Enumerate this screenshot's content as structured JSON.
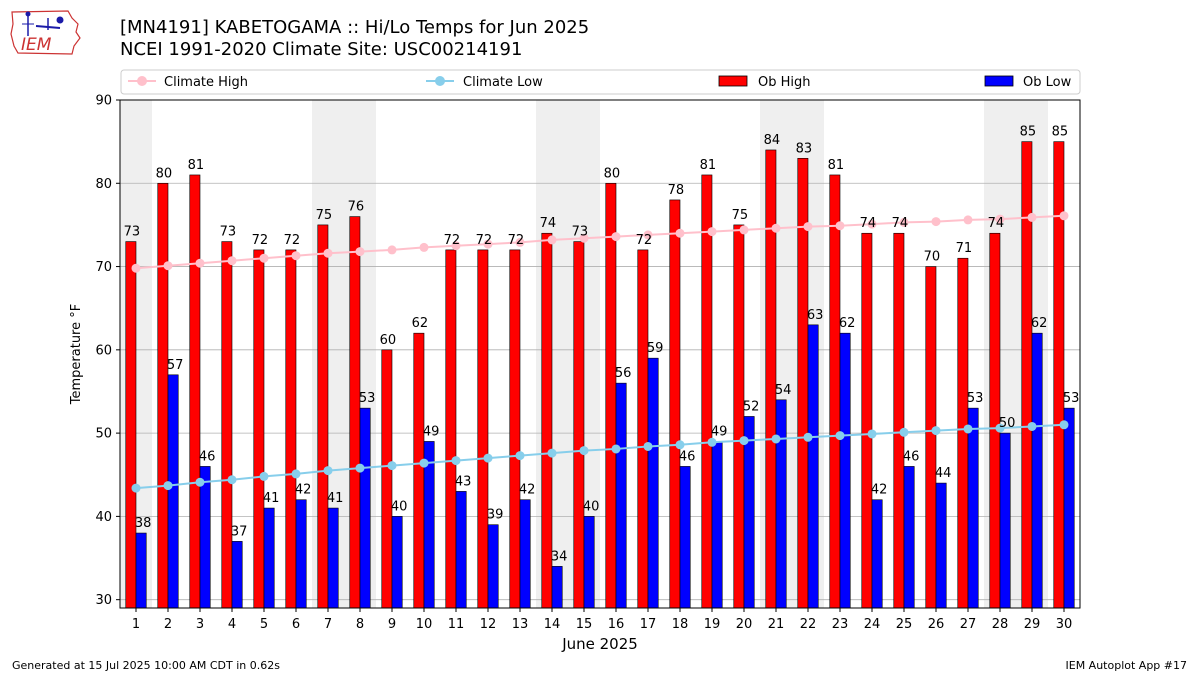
{
  "header": {
    "title_line1": "[MN4191] KABETOGAMA :: Hi/Lo Temps for Jun 2025",
    "title_line2": "NCEI 1991-2020 Climate Site: USC00214191"
  },
  "logo": {
    "text": "IEM"
  },
  "footer": {
    "generated": "Generated at 15 Jul 2025 10:00 AM CDT in 0.62s",
    "app": "IEM Autoplot App #17"
  },
  "chart_data": {
    "type": "bar",
    "xlabel": "June 2025",
    "ylabel": "Temperature °F",
    "ylim": [
      29,
      90
    ],
    "yticks": [
      30,
      40,
      50,
      60,
      70,
      80,
      90
    ],
    "grid": "horizontal",
    "legend_position": "top",
    "weekend_shading": true,
    "weekend_days": [
      1,
      7,
      8,
      14,
      15,
      21,
      22,
      28,
      29
    ],
    "shade_color": "#efefef",
    "categories": [
      "1",
      "2",
      "3",
      "4",
      "5",
      "6",
      "7",
      "8",
      "9",
      "10",
      "11",
      "12",
      "13",
      "14",
      "15",
      "16",
      "17",
      "18",
      "19",
      "20",
      "21",
      "22",
      "23",
      "24",
      "25",
      "26",
      "27",
      "28",
      "29",
      "30"
    ],
    "series": [
      {
        "name": "Ob High",
        "kind": "bar",
        "color": "#ff0000",
        "values": [
          73,
          80,
          81,
          73,
          72,
          72,
          75,
          76,
          60,
          62,
          72,
          72,
          72,
          74,
          73,
          80,
          72,
          78,
          81,
          75,
          84,
          83,
          81,
          74,
          74,
          70,
          71,
          74,
          85,
          85
        ]
      },
      {
        "name": "Ob Low",
        "kind": "bar",
        "color": "#0000ff",
        "values": [
          38,
          57,
          46,
          37,
          41,
          42,
          41,
          53,
          40,
          49,
          43,
          39,
          42,
          34,
          40,
          56,
          59,
          46,
          49,
          52,
          54,
          63,
          62,
          42,
          46,
          44,
          53,
          50,
          62,
          53
        ]
      },
      {
        "name": "Climate High",
        "kind": "line",
        "color": "#ffc0cb",
        "values": [
          69.8,
          70.1,
          70.4,
          70.7,
          71.0,
          71.3,
          71.6,
          71.8,
          72.0,
          72.3,
          72.5,
          72.7,
          72.9,
          73.2,
          73.4,
          73.6,
          73.8,
          74.0,
          74.2,
          74.4,
          74.6,
          74.8,
          74.9,
          75.1,
          75.3,
          75.4,
          75.6,
          75.7,
          75.9,
          76.1
        ]
      },
      {
        "name": "Climate Low",
        "kind": "line",
        "color": "#87ceeb",
        "values": [
          43.4,
          43.7,
          44.1,
          44.4,
          44.8,
          45.1,
          45.5,
          45.8,
          46.1,
          46.4,
          46.7,
          47.0,
          47.3,
          47.6,
          47.9,
          48.1,
          48.4,
          48.6,
          48.9,
          49.1,
          49.3,
          49.5,
          49.7,
          49.9,
          50.1,
          50.3,
          50.5,
          50.6,
          50.8,
          51.0
        ]
      }
    ],
    "legend_order": [
      "Climate High",
      "Climate Low",
      "Ob High",
      "Ob Low"
    ]
  }
}
